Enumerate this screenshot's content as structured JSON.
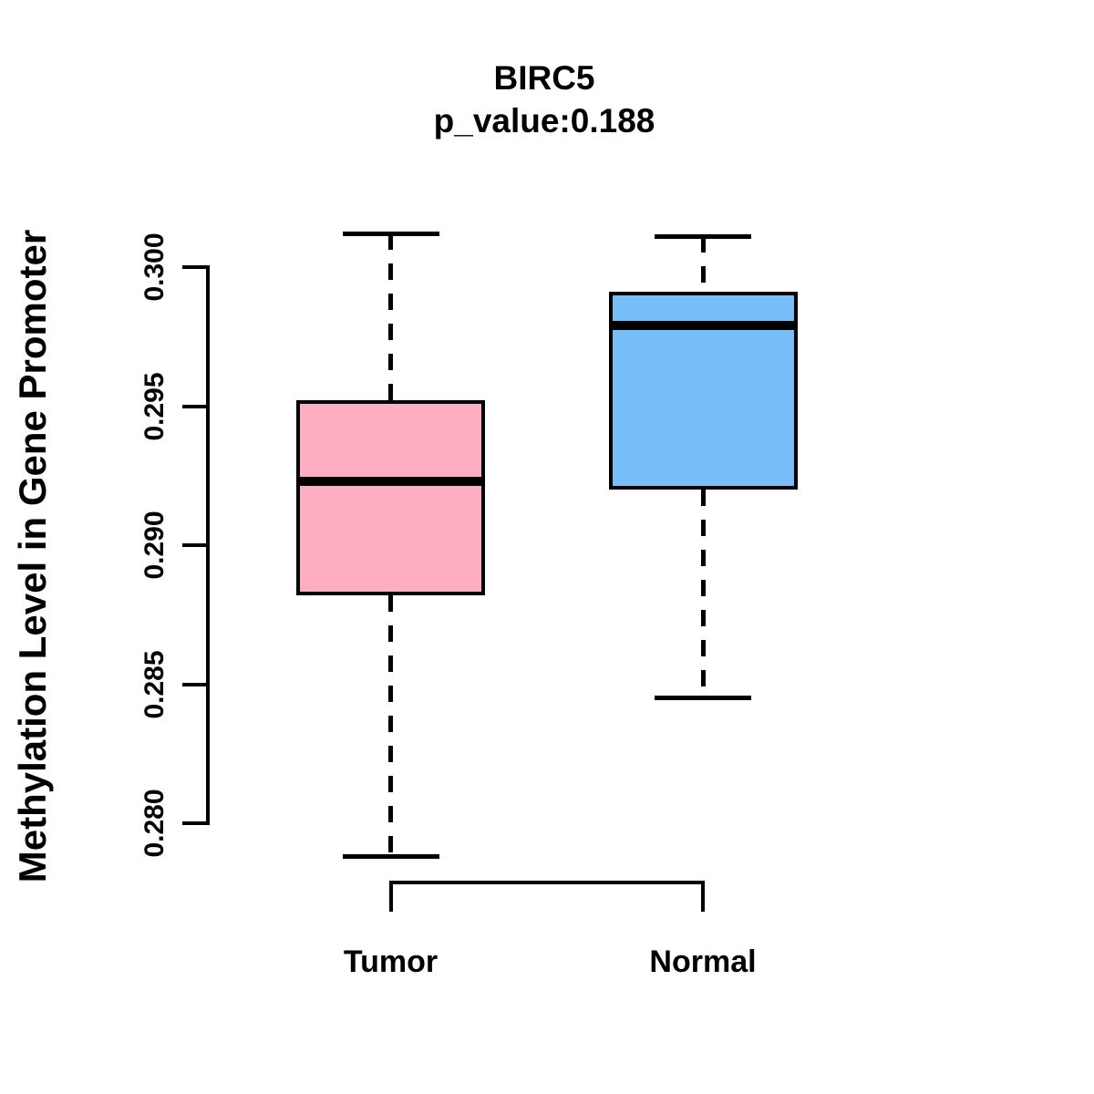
{
  "chart_data": {
    "type": "boxplot",
    "title": "BIRC5",
    "subtitle": "p_value:0.188",
    "xlabel": "",
    "ylabel": "Methylation Level in Gene Promoter",
    "ylim": [
      0.28,
      0.3
    ],
    "yticks": [
      "0.280",
      "0.285",
      "0.290",
      "0.295",
      "0.300"
    ],
    "grid": false,
    "legend": null,
    "categories": [
      "Tumor",
      "Normal"
    ],
    "series": [
      {
        "name": "Tumor",
        "fill_color": "#FFAEC1",
        "whisker_low": 0.2788,
        "q1": 0.2882,
        "median": 0.2923,
        "q3": 0.2952,
        "whisker_high": 0.3012
      },
      {
        "name": "Normal",
        "fill_color": "#77BEF8",
        "whisker_low": 0.2845,
        "q1": 0.292,
        "median": 0.2979,
        "q3": 0.2991,
        "whisker_high": 0.3011
      }
    ],
    "comparison_bracket": {
      "between": [
        "Tumor",
        "Normal"
      ]
    },
    "line_color": "#000000",
    "background_color": "#FFFFFF"
  }
}
